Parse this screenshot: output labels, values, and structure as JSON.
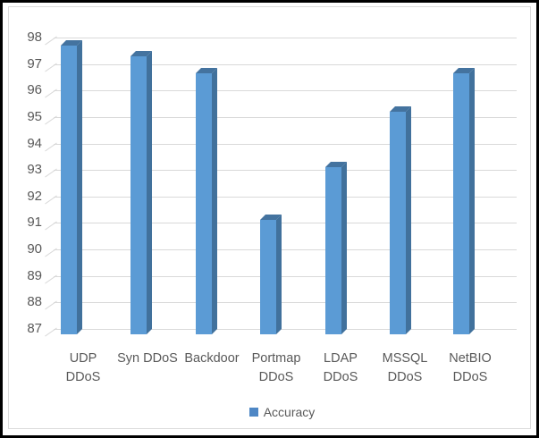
{
  "window": {
    "background": "#FFFFFF",
    "border_color": "#000000"
  },
  "chart_data": {
    "type": "bar",
    "style": "3d-column",
    "title": "",
    "xlabel": "",
    "ylabel": "",
    "categories": [
      "UDP DDoS",
      "Syn DDoS",
      "Backdoor",
      "Portmap DDoS",
      "LDAP DDoS",
      "MSSQL DDoS",
      "NetBIO DDoS"
    ],
    "series": [
      {
        "name": "Accuracy",
        "values": [
          97.7,
          97.3,
          96.65,
          91.1,
          93.1,
          95.2,
          96.65
        ]
      }
    ],
    "ylim": [
      87,
      98
    ],
    "yticks": [
      87,
      88,
      89,
      90,
      91,
      92,
      93,
      94,
      95,
      96,
      97,
      98
    ],
    "grid": true,
    "legend": {
      "position": "bottom",
      "entries": [
        {
          "label": "Accuracy",
          "color": "#4E87C5"
        }
      ]
    },
    "colors": {
      "bar_front": "#5B9BD5",
      "bar_top": "#44739F",
      "bar_side": "#41719C",
      "gridline": "#D9D9D9",
      "axis_text": "#595959"
    }
  }
}
